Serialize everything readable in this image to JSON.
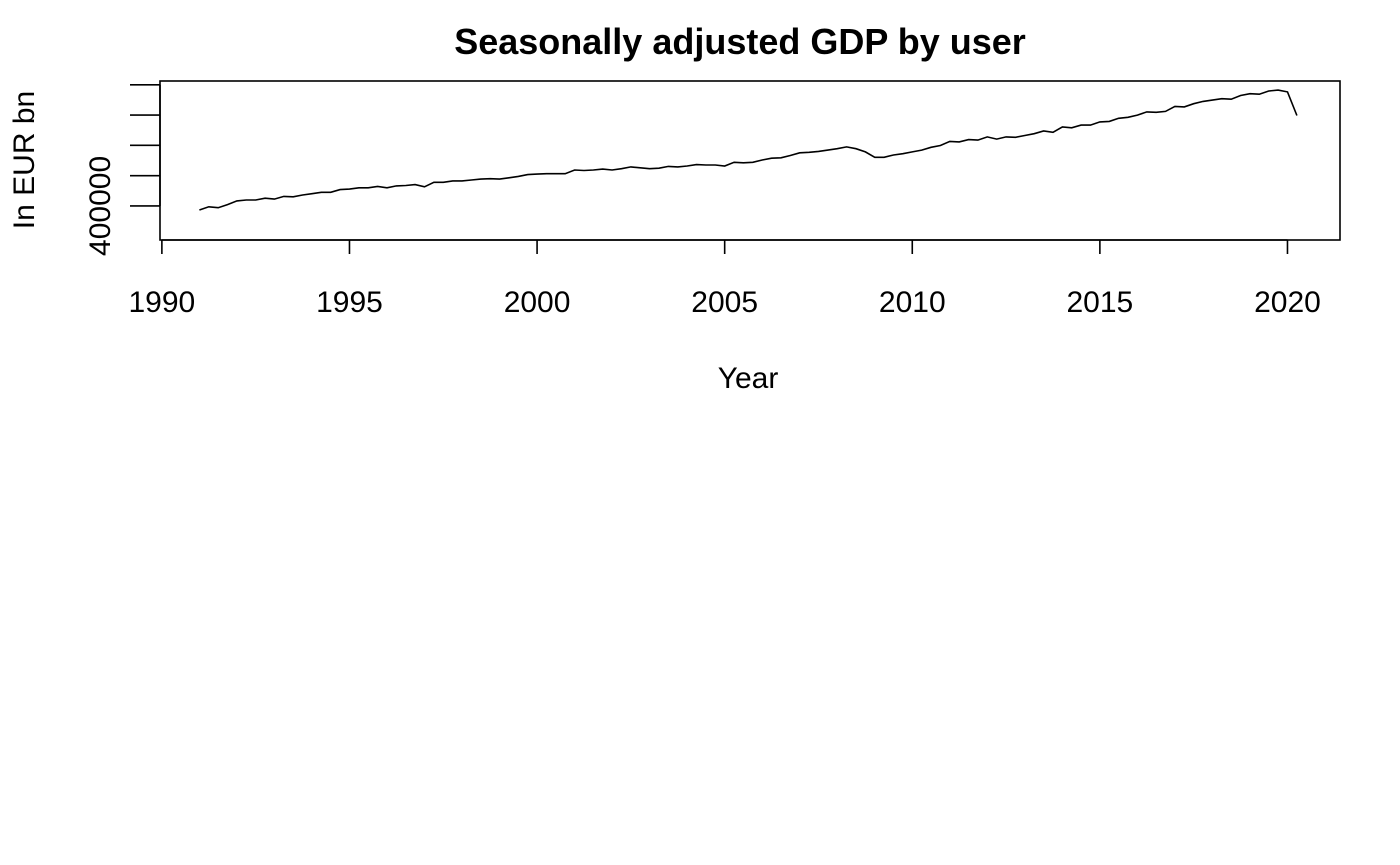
{
  "chart_data": {
    "type": "line",
    "title": "Seasonally adjusted GDP by user",
    "xlabel": "Year",
    "ylabel": "In EUR bn",
    "xlim": [
      1989.95,
      2021.4
    ],
    "ylim": [
      392500,
      427500
    ],
    "x_ticks": [
      1990,
      1995,
      2000,
      2005,
      2010,
      2015,
      2020
    ],
    "x_tick_labels": [
      "1990",
      "1995",
      "2000",
      "2005",
      "2010",
      "2015",
      "2020"
    ],
    "y_ticks": [
      400000,
      406667,
      413333,
      420000,
      426667
    ],
    "y_tick_labels": [
      "400000",
      "",
      "",
      "",
      ""
    ],
    "grid": false,
    "series": [
      {
        "x": [
          1991.0,
          1991.25,
          1991.5,
          1991.75,
          1992.0,
          1992.25,
          1992.5,
          1992.75,
          1993.0,
          1993.25,
          1993.5,
          1993.75,
          1994.0,
          1994.25,
          1994.5,
          1994.75,
          1995.0,
          1995.25,
          1995.5,
          1995.75,
          1996.0,
          1996.25,
          1996.5,
          1996.75,
          1997.0,
          1997.25,
          1997.5,
          1997.75,
          1998.0,
          1998.25,
          1998.5,
          1998.75,
          1999.0,
          1999.25,
          1999.5,
          1999.75,
          2000.0,
          2000.25,
          2000.5,
          2000.75,
          2001.0,
          2001.25,
          2001.5,
          2001.75,
          2002.0,
          2002.25,
          2002.5,
          2002.75,
          2003.0,
          2003.25,
          2003.5,
          2003.75,
          2004.0,
          2004.25,
          2004.5,
          2004.75,
          2005.0,
          2005.25,
          2005.5,
          2005.75,
          2006.0,
          2006.25,
          2006.5,
          2006.75,
          2007.0,
          2007.25,
          2007.5,
          2007.75,
          2008.0,
          2008.25,
          2008.5,
          2008.75,
          2009.0,
          2009.25,
          2009.5,
          2009.75,
          2010.0,
          2010.25,
          2010.5,
          2010.75,
          2011.0,
          2011.25,
          2011.5,
          2011.75,
          2012.0,
          2012.25,
          2012.5,
          2012.75,
          2013.0,
          2013.25,
          2013.5,
          2013.75,
          2014.0,
          2014.25,
          2014.5,
          2014.75,
          2015.0,
          2015.25,
          2015.5,
          2015.75,
          2016.0,
          2016.25,
          2016.5,
          2016.75,
          2017.0,
          2017.25,
          2017.5,
          2017.75,
          2018.0,
          2018.25,
          2018.5,
          2018.75,
          2019.0,
          2019.25,
          2019.5,
          2019.75,
          2020.0,
          2020.25
        ],
        "y": [
          399100,
          399800,
          399600,
          400300,
          401100,
          401300,
          401300,
          401700,
          401500,
          402100,
          402000,
          402400,
          402700,
          403000,
          403000,
          403600,
          403700,
          404000,
          404000,
          404300,
          404000,
          404400,
          404500,
          404700,
          404200,
          405200,
          405200,
          405500,
          405500,
          405700,
          405900,
          406000,
          405900,
          406200,
          406500,
          406900,
          407000,
          407100,
          407100,
          407100,
          407900,
          407800,
          407900,
          408100,
          407900,
          408200,
          408600,
          408400,
          408200,
          408300,
          408700,
          408600,
          408800,
          409100,
          409000,
          409000,
          408800,
          409600,
          409500,
          409600,
          410100,
          410500,
          410600,
          411100,
          411700,
          411800,
          412000,
          412300,
          412600,
          413000,
          412600,
          411900,
          410700,
          410700,
          411200,
          411500,
          411900,
          412300,
          412900,
          413300,
          414200,
          414100,
          414600,
          414500,
          415200,
          414700,
          415200,
          415100,
          415500,
          415900,
          416500,
          416200,
          417400,
          417200,
          417800,
          417800,
          418500,
          418600,
          419300,
          419500,
          420000,
          420700,
          420600,
          420800,
          421900,
          421800,
          422500,
          423000,
          423300,
          423600,
          423500,
          424300,
          424700,
          424600,
          425300,
          425500,
          425100,
          419900
        ]
      }
    ]
  }
}
